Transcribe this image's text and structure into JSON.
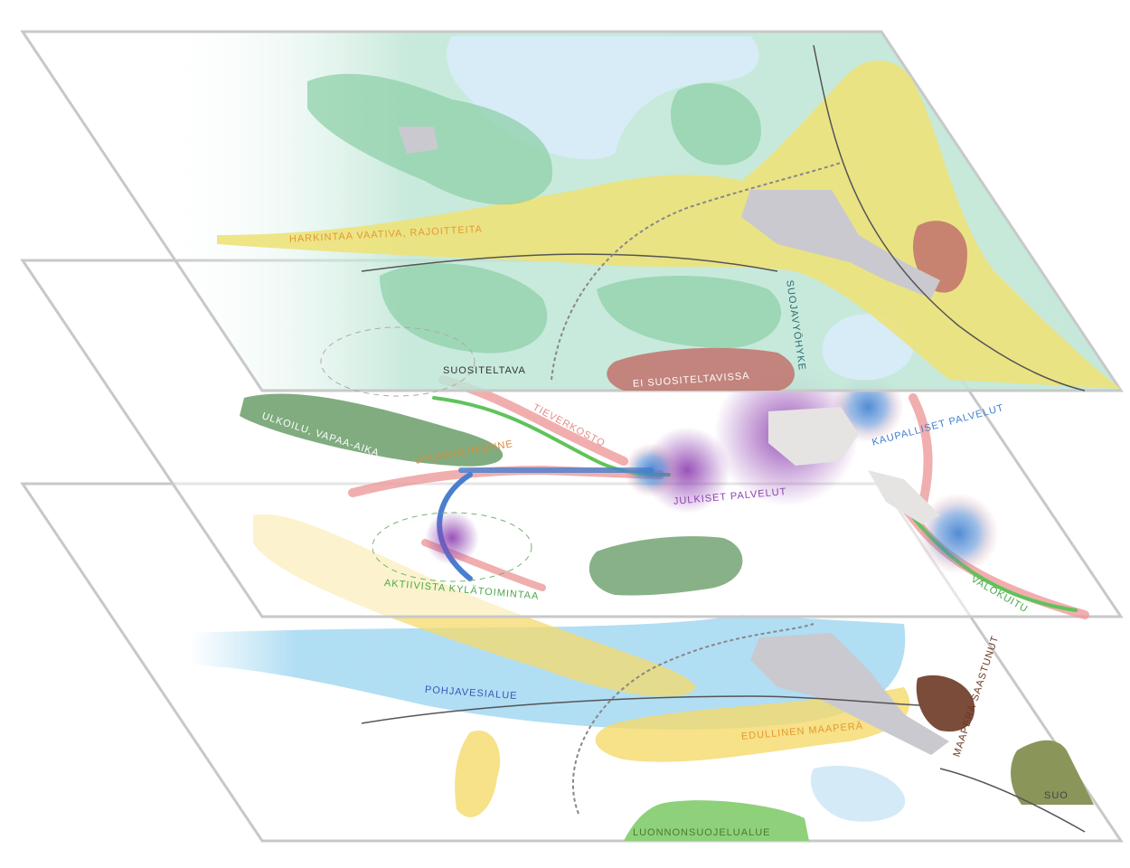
{
  "layers": [
    {
      "labels": [
        "HARKINTAA VAATIVA, RAJOITTEITA",
        "SUOSITELTAVA",
        "EI SUOSITELTAVISSA",
        "SUOJAVYÖHYKE"
      ]
    },
    {
      "labels": [
        "ULKOILU, VAPAA-AIKA",
        "TIEVERKOSTO",
        "JOUKKOLIIKENNE",
        "JULKISET PALVELUT",
        "KAUPALLISET PALVELUT",
        "VALOKUITU",
        "AKTIIVISTA KYLÄTOIMINTAA"
      ]
    },
    {
      "labels": [
        "POHJAVESIALUE",
        "EDULLINEN MAAPERÄ",
        "MAAPERÄ SAASTUNUT",
        "SUO",
        "LUONNONSUOJELUALUE"
      ]
    }
  ]
}
